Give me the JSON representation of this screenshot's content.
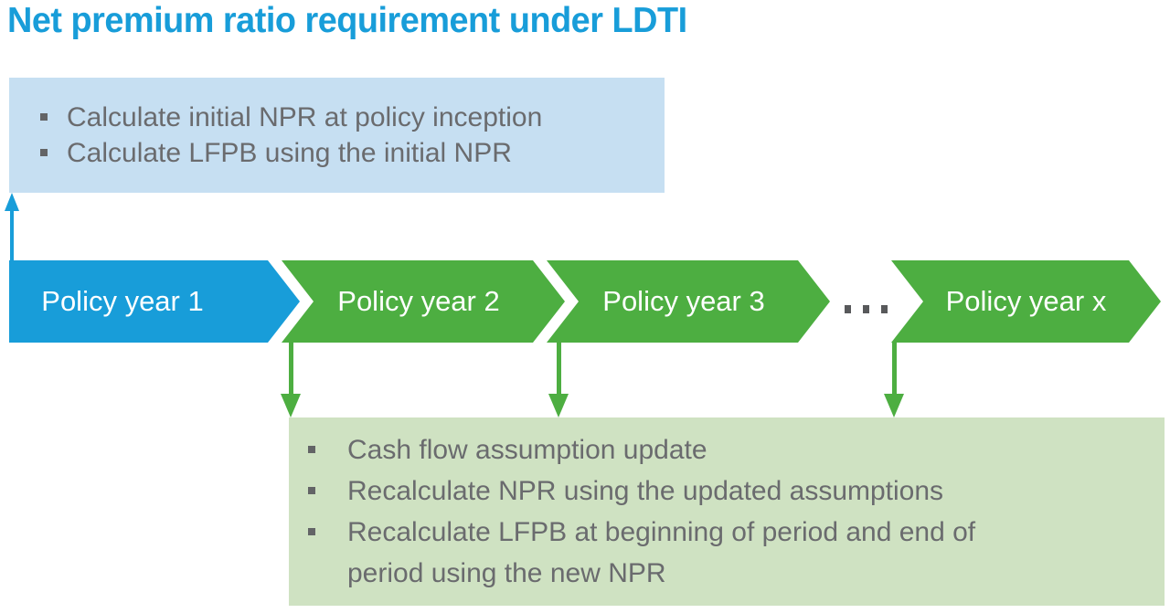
{
  "title": "Net premium ratio requirement under LDTI",
  "colors": {
    "blue": "#189DD9",
    "green": "#4DAE41",
    "light_blue": "#C6DFF2",
    "light_green": "#CFE2C2",
    "text_gray": "#6A6B6E",
    "dot_gray": "#58595B"
  },
  "initial_box": {
    "items": [
      "Calculate initial NPR at policy inception",
      "Calculate LFPB using the initial NPR"
    ]
  },
  "timeline": {
    "chevrons": [
      {
        "label": "Policy year 1",
        "color": "blue"
      },
      {
        "label": "Policy year 2",
        "color": "green"
      },
      {
        "label": "Policy year 3",
        "color": "green"
      },
      {
        "label": "Policy year x",
        "color": "green"
      }
    ],
    "ellipsis_icon": "three-square-dots"
  },
  "update_box": {
    "items": [
      "Cash flow assumption update",
      "Recalculate NPR using the updated assumptions",
      "Recalculate LFPB at beginning of period and end of period using the new NPR"
    ]
  }
}
